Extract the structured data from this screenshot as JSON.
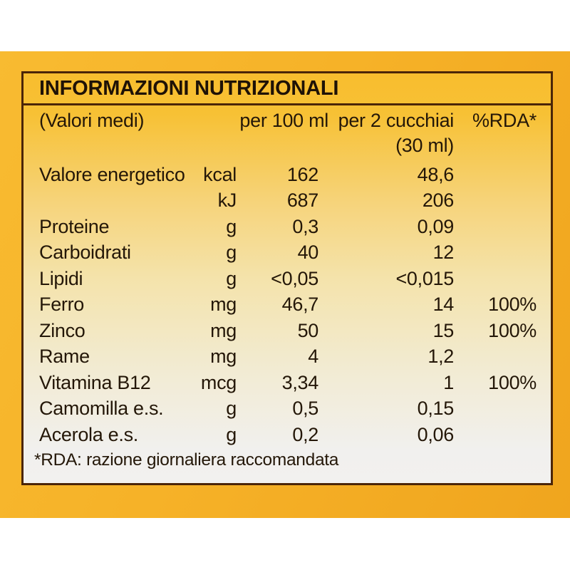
{
  "label": {
    "title": "INFORMAZIONI NUTRIZIONALI",
    "header": {
      "valori_medi": "(Valori medi)",
      "per_100_ml": "per 100 ml",
      "per_2_cucchiai": "per 2 cucchiai",
      "per_30_ml": "(30 ml)",
      "rda": "%RDA*"
    },
    "rows": [
      {
        "name": "Valore energetico",
        "unit": "kcal",
        "per100": "162",
        "per30": "48,6",
        "rda": ""
      },
      {
        "name": "",
        "unit": "kJ",
        "per100": "687",
        "per30": "206",
        "rda": ""
      },
      {
        "name": "Proteine",
        "unit": "g",
        "per100": "0,3",
        "per30": "0,09",
        "rda": ""
      },
      {
        "name": "Carboidrati",
        "unit": "g",
        "per100": "40",
        "per30": "12",
        "rda": ""
      },
      {
        "name": "Lipidi",
        "unit": "g",
        "per100": "<0,05",
        "per30": "<0,015",
        "rda": ""
      },
      {
        "name": "Ferro",
        "unit": "mg",
        "per100": "46,7",
        "per30": "14",
        "rda": "100%"
      },
      {
        "name": "Zinco",
        "unit": "mg",
        "per100": "50",
        "per30": "15",
        "rda": "100%"
      },
      {
        "name": "Rame",
        "unit": "mg",
        "per100": "4",
        "per30": "1,2",
        "rda": ""
      },
      {
        "name": "Vitamina B12",
        "unit": "mcg",
        "per100": "3,34",
        "per30": "1",
        "rda": "100%"
      },
      {
        "name": "Camomilla e.s.",
        "unit": "g",
        "per100": "0,5",
        "per30": "0,15",
        "rda": ""
      },
      {
        "name": "Acerola e.s.",
        "unit": "g",
        "per100": "0,2",
        "per30": "0,06",
        "rda": ""
      }
    ],
    "footnote": "*RDA: razione giornaliera raccomandata",
    "colors": {
      "package_orange": "#F6B228",
      "panel_top": "#F8BD2E",
      "panel_middle": "#F4E3AB",
      "panel_bottom": "#F1F0EE",
      "border": "#4B2508",
      "text": "#241708"
    }
  }
}
